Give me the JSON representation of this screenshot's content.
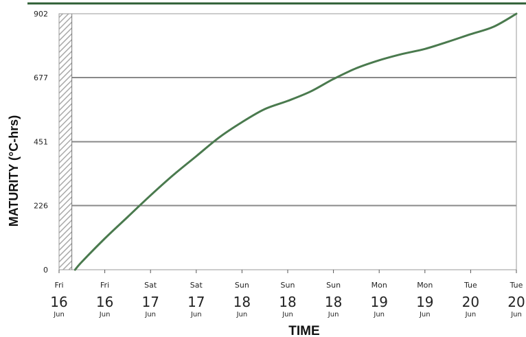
{
  "chart_data": {
    "type": "line",
    "xlabel": "TIME",
    "ylabel": "MATURITY (°C-hrs)",
    "ylim": [
      0,
      902
    ],
    "y_ticks": [
      0,
      226,
      451,
      677,
      902
    ],
    "x_ticks": [
      {
        "day": "Fri",
        "date": "16",
        "month": "Jun"
      },
      {
        "day": "Fri",
        "date": "16",
        "month": "Jun"
      },
      {
        "day": "Sat",
        "date": "17",
        "month": "Jun"
      },
      {
        "day": "Sat",
        "date": "17",
        "month": "Jun"
      },
      {
        "day": "Sun",
        "date": "18",
        "month": "Jun"
      },
      {
        "day": "Sun",
        "date": "18",
        "month": "Jun"
      },
      {
        "day": "Sun",
        "date": "18",
        "month": "Jun"
      },
      {
        "day": "Mon",
        "date": "19",
        "month": "Jun"
      },
      {
        "day": "Mon",
        "date": "19",
        "month": "Jun"
      },
      {
        "day": "Tue",
        "date": "20",
        "month": "Jun"
      },
      {
        "day": "Tue",
        "date": "20",
        "month": "Jun"
      }
    ],
    "series": [
      {
        "color": "#4a7a4e",
        "x": [
          0.35,
          0.5,
          1.0,
          1.5,
          2.0,
          2.5,
          3.0,
          3.5,
          4.0,
          4.5,
          5.0,
          5.5,
          6.0,
          6.5,
          7.0,
          7.5,
          8.0,
          8.5,
          9.0,
          9.5,
          10.0
        ],
        "values": [
          0,
          28,
          110,
          186,
          262,
          334,
          400,
          466,
          520,
          566,
          595,
          628,
          672,
          710,
          738,
          760,
          778,
          803,
          830,
          856,
          902
        ]
      }
    ],
    "hatched_region": {
      "x_start": 0,
      "x_end": 0.28
    },
    "grid": true,
    "colors": {
      "line": "#4a7a4e",
      "grid": "#888888",
      "top_rule": "#2e5e34"
    }
  }
}
